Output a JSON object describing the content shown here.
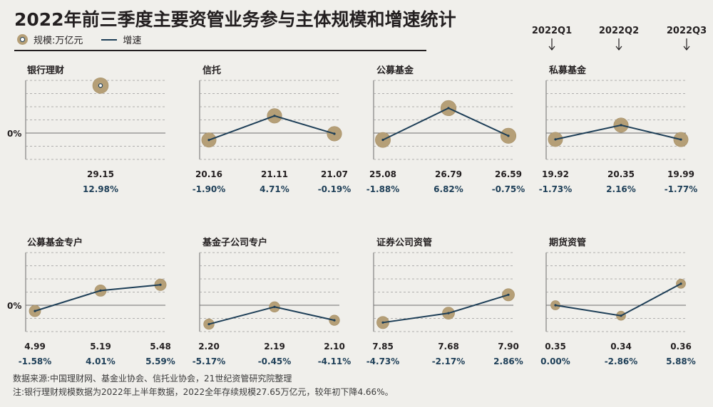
{
  "title": "2022年前三季度主要资管业务参与主体规模和增速统计",
  "legend": {
    "scale_label": "规模:万亿元",
    "growth_label": "增速"
  },
  "quarter_headers": [
    "2022Q1",
    "2022Q2",
    "2022Q3"
  ],
  "zero_label": "0%",
  "colors": {
    "bubble": "#b59f77",
    "line": "#1d3e57",
    "growth_text": "#1d3e57",
    "grid": "#9a9a9a",
    "background": "#f0efeb"
  },
  "chart_data": [
    {
      "type": "scatter",
      "title": "银行理财",
      "quarters": [
        "2022Q1",
        "2022Q2",
        "2022Q3"
      ],
      "scale": [
        null,
        29.15,
        null
      ],
      "growth": [
        null,
        12.98,
        null
      ],
      "scale_labels": [
        "",
        "29.15",
        ""
      ],
      "growth_labels": [
        "",
        "12.98%",
        ""
      ]
    },
    {
      "type": "line",
      "title": "信托",
      "quarters": [
        "2022Q1",
        "2022Q2",
        "2022Q3"
      ],
      "scale": [
        20.16,
        21.11,
        21.07
      ],
      "growth": [
        -1.9,
        4.71,
        -0.19
      ],
      "scale_labels": [
        "20.16",
        "21.11",
        "21.07"
      ],
      "growth_labels": [
        "-1.90%",
        "4.71%",
        "-0.19%"
      ]
    },
    {
      "type": "line",
      "title": "公募基金",
      "quarters": [
        "2022Q1",
        "2022Q2",
        "2022Q3"
      ],
      "scale": [
        25.08,
        26.79,
        26.59
      ],
      "growth": [
        -1.88,
        6.82,
        -0.75
      ],
      "scale_labels": [
        "25.08",
        "26.79",
        "26.59"
      ],
      "growth_labels": [
        "-1.88%",
        "6.82%",
        "-0.75%"
      ]
    },
    {
      "type": "line",
      "title": "私募基金",
      "quarters": [
        "2022Q1",
        "2022Q2",
        "2022Q3"
      ],
      "scale": [
        19.92,
        20.35,
        19.99
      ],
      "growth": [
        -1.73,
        2.16,
        -1.77
      ],
      "scale_labels": [
        "19.92",
        "20.35",
        "19.99"
      ],
      "growth_labels": [
        "-1.73%",
        "2.16%",
        "-1.77%"
      ]
    },
    {
      "type": "line",
      "title": "公募基金专户",
      "quarters": [
        "2022Q1",
        "2022Q2",
        "2022Q3"
      ],
      "scale": [
        4.99,
        5.19,
        5.48
      ],
      "growth": [
        -1.58,
        4.01,
        5.59
      ],
      "scale_labels": [
        "4.99",
        "5.19",
        "5.48"
      ],
      "growth_labels": [
        "-1.58%",
        "4.01%",
        "5.59%"
      ]
    },
    {
      "type": "line",
      "title": "基金子公司专户",
      "quarters": [
        "2022Q1",
        "2022Q2",
        "2022Q3"
      ],
      "scale": [
        2.2,
        2.19,
        2.1
      ],
      "growth": [
        -5.17,
        -0.45,
        -4.11
      ],
      "scale_labels": [
        "2.20",
        "2.19",
        "2.10"
      ],
      "growth_labels": [
        "-5.17%",
        "-0.45%",
        "-4.11%"
      ]
    },
    {
      "type": "line",
      "title": "证券公司资管",
      "quarters": [
        "2022Q1",
        "2022Q2",
        "2022Q3"
      ],
      "scale": [
        7.85,
        7.68,
        7.9
      ],
      "growth": [
        -4.73,
        -2.17,
        2.86
      ],
      "scale_labels": [
        "7.85",
        "7.68",
        "7.90"
      ],
      "growth_labels": [
        "-4.73%",
        "-2.17%",
        "2.86%"
      ]
    },
    {
      "type": "line",
      "title": "期货资管",
      "quarters": [
        "2022Q1",
        "2022Q2",
        "2022Q3"
      ],
      "scale": [
        0.35,
        0.34,
        0.36
      ],
      "growth": [
        0.0,
        -2.86,
        5.88
      ],
      "scale_labels": [
        "0.35",
        "0.34",
        "0.36"
      ],
      "growth_labels": [
        "0.00%",
        "-2.86%",
        "5.88%"
      ]
    }
  ],
  "footnotes": {
    "source": "数据来源:中国理财网、基金业协会、信托业协会，21世纪资管研究院整理",
    "note": "注:银行理财规模数据为2022年上半年数据，2022全年存续规模27.65万亿元，较年初下降4.66%。"
  }
}
